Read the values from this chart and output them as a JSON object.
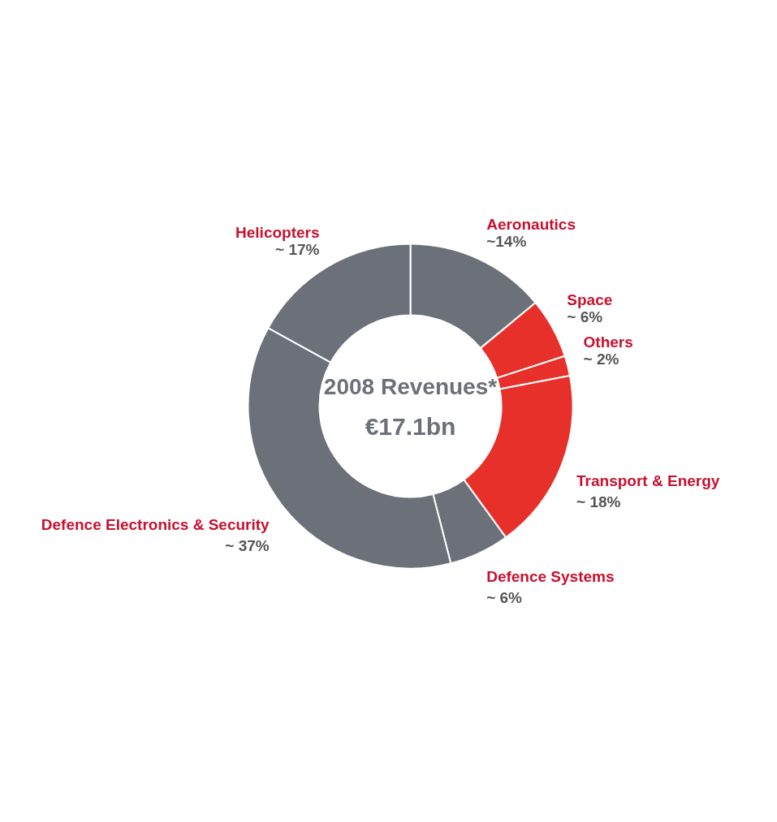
{
  "chart_data": {
    "type": "donut",
    "title": "2008 Revenues*",
    "subtitle": "€17.1bn",
    "categories": [
      "Aeronautics",
      "Space",
      "Others",
      "Transport & Energy",
      "Defence Systems",
      "Defence Electronics & Security",
      "Helicopters"
    ],
    "values": [
      14,
      6,
      2,
      18,
      6,
      37,
      17
    ],
    "value_labels": [
      "~14%",
      "~ 6%",
      "~ 2%",
      "~ 18%",
      "~ 6%",
      "~ 37%",
      "~ 17%"
    ],
    "colors": [
      "#6b7079",
      "#e8302a",
      "#e8302a",
      "#e8302a",
      "#6b7079",
      "#6b7079",
      "#6b7079"
    ]
  }
}
